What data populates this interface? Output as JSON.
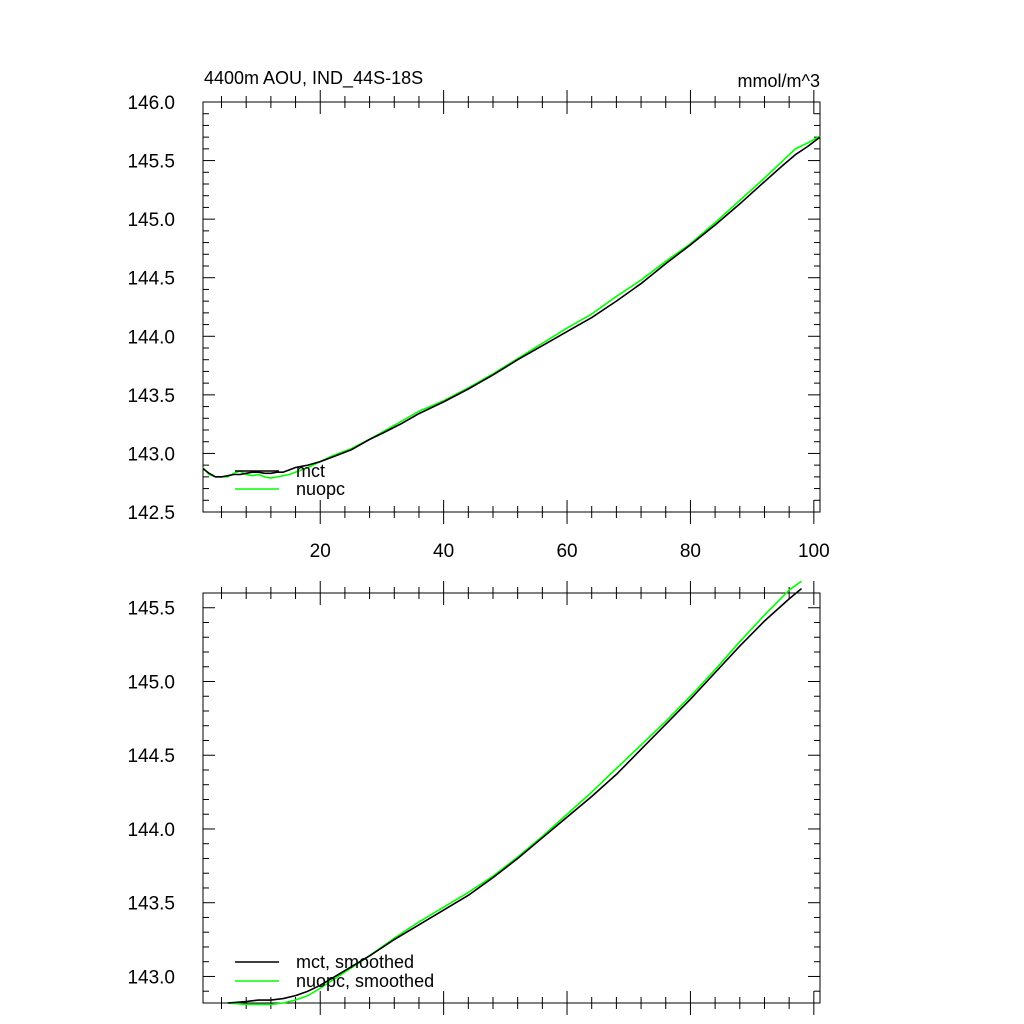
{
  "chart_data": [
    {
      "type": "line",
      "title_left": "4400m AOU, IND_44S-18S",
      "title_right": "mmol/m^3",
      "xlim": [
        1,
        101
      ],
      "ylim": [
        142.5,
        146.0
      ],
      "x_ticks": [
        20,
        40,
        60,
        80,
        100
      ],
      "x_tick_labels": [
        "20",
        "40",
        "60",
        "80",
        "100"
      ],
      "x_minor_step": 4,
      "y_ticks": [
        142.5,
        143.0,
        143.5,
        144.0,
        144.5,
        145.0,
        145.5,
        146.0
      ],
      "y_tick_labels": [
        "142.5",
        "143.0",
        "143.5",
        "144.0",
        "144.5",
        "145.0",
        "145.5",
        "146.0"
      ],
      "y_minor_step": 0.1,
      "legend_position": "bottom-left",
      "series": [
        {
          "name": "mct",
          "color": "#000000",
          "x": [
            1,
            2,
            3,
            4,
            5,
            6,
            7,
            8,
            9,
            10,
            11,
            12,
            13,
            14,
            15,
            16,
            17,
            18,
            20,
            22,
            25,
            28,
            30,
            33,
            36,
            40,
            44,
            48,
            52,
            56,
            60,
            64,
            68,
            72,
            76,
            80,
            84,
            88,
            92,
            95,
            97,
            99,
            101
          ],
          "y": [
            142.87,
            142.83,
            142.8,
            142.8,
            142.81,
            142.82,
            142.82,
            142.83,
            142.84,
            142.84,
            142.83,
            142.83,
            142.84,
            142.84,
            142.86,
            142.88,
            142.89,
            142.9,
            142.93,
            142.97,
            143.03,
            143.12,
            143.17,
            143.25,
            143.34,
            143.44,
            143.55,
            143.67,
            143.8,
            143.92,
            144.04,
            144.16,
            144.3,
            144.45,
            144.62,
            144.78,
            144.95,
            145.13,
            145.32,
            145.46,
            145.55,
            145.62,
            145.7
          ]
        },
        {
          "name": "nuopc",
          "color": "#00ff00",
          "x": [
            1,
            2,
            3,
            4,
            5,
            6,
            7,
            8,
            9,
            10,
            11,
            12,
            13,
            14,
            15,
            16,
            17,
            18,
            20,
            22,
            25,
            28,
            30,
            33,
            36,
            40,
            44,
            48,
            52,
            56,
            60,
            64,
            68,
            72,
            76,
            80,
            84,
            88,
            92,
            95,
            97,
            99,
            101
          ],
          "y": [
            142.88,
            142.82,
            142.8,
            142.8,
            142.8,
            142.83,
            142.85,
            142.82,
            142.81,
            142.82,
            142.8,
            142.79,
            142.8,
            142.81,
            142.82,
            142.84,
            142.86,
            142.88,
            142.93,
            142.98,
            143.04,
            143.12,
            143.18,
            143.27,
            143.36,
            143.45,
            143.56,
            143.68,
            143.81,
            143.94,
            144.07,
            144.19,
            144.34,
            144.48,
            144.64,
            144.79,
            144.97,
            145.16,
            145.35,
            145.5,
            145.6,
            145.65,
            145.71
          ]
        }
      ]
    },
    {
      "type": "line",
      "xlim": [
        1,
        101
      ],
      "ylim": [
        142.82,
        145.6
      ],
      "x_ticks": [
        20,
        40,
        60,
        80,
        100
      ],
      "x_minor_step": 4,
      "y_ticks": [
        143.0,
        143.5,
        144.0,
        144.5,
        145.0,
        145.5
      ],
      "y_tick_labels": [
        "143.0",
        "143.5",
        "144.0",
        "144.5",
        "145.0",
        "145.5"
      ],
      "y_minor_step": 0.1,
      "legend_position": "bottom-left",
      "series": [
        {
          "name": "mct, smoothed",
          "color": "#000000",
          "x": [
            5,
            8,
            10,
            12,
            14,
            16,
            18,
            20,
            24,
            28,
            32,
            36,
            40,
            44,
            48,
            52,
            56,
            60,
            64,
            68,
            72,
            76,
            80,
            84,
            88,
            92,
            96,
            98
          ],
          "y": [
            142.82,
            142.83,
            142.84,
            142.84,
            142.85,
            142.87,
            142.9,
            142.94,
            143.04,
            143.14,
            143.25,
            143.35,
            143.45,
            143.55,
            143.67,
            143.8,
            143.94,
            144.08,
            144.22,
            144.37,
            144.54,
            144.71,
            144.88,
            145.06,
            145.24,
            145.41,
            145.56,
            145.63
          ]
        },
        {
          "name": "nuopc, smoothed",
          "color": "#00ff00",
          "x": [
            5,
            8,
            10,
            12,
            14,
            16,
            18,
            20,
            24,
            28,
            32,
            36,
            40,
            44,
            48,
            52,
            56,
            60,
            64,
            68,
            72,
            76,
            80,
            84,
            88,
            92,
            96,
            98
          ],
          "y": [
            142.82,
            142.81,
            142.81,
            142.81,
            142.82,
            142.84,
            142.87,
            142.92,
            143.03,
            143.14,
            143.26,
            143.37,
            143.47,
            143.57,
            143.68,
            143.81,
            143.95,
            144.1,
            144.25,
            144.41,
            144.57,
            144.73,
            144.9,
            145.08,
            145.27,
            145.45,
            145.62,
            145.68
          ]
        }
      ]
    }
  ]
}
